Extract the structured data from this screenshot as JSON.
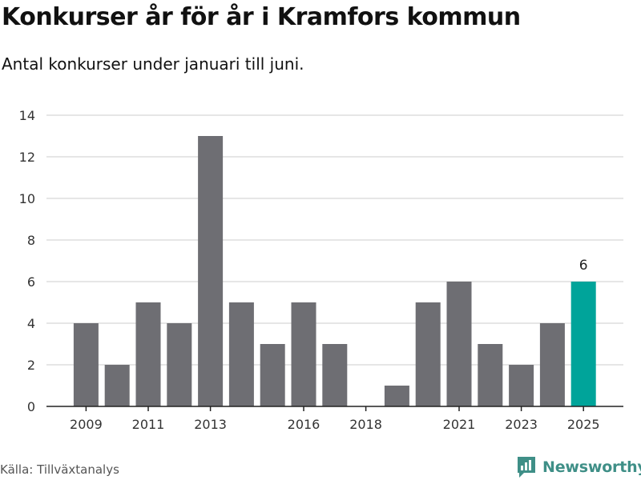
{
  "title": "Konkurser år för år i Kramfors kommun",
  "subtitle": "Antal konkurser under januari till juni.",
  "source": "Källa: Tillväxtanalys",
  "logo_text": "Newsworthy",
  "colors": {
    "bar": "#6e6e73",
    "highlight": "#00a49a",
    "grid": "#dddddd",
    "axis": "#222222",
    "logo": "#3f8f87"
  },
  "chart_data": {
    "type": "bar",
    "title": "Konkurser år för år i Kramfors kommun",
    "subtitle": "Antal konkurser under januari till juni.",
    "categories": [
      2009,
      2010,
      2011,
      2012,
      2013,
      2014,
      2015,
      2016,
      2017,
      2018,
      2019,
      2020,
      2021,
      2022,
      2023,
      2024,
      2025
    ],
    "values": [
      4,
      2,
      5,
      4,
      13,
      5,
      3,
      5,
      3,
      0,
      1,
      5,
      6,
      3,
      2,
      4,
      6
    ],
    "x_tick_labels": [
      2009,
      2011,
      2013,
      2016,
      2018,
      2021,
      2023,
      2025
    ],
    "y_ticks": [
      0,
      2,
      4,
      6,
      8,
      10,
      12,
      14
    ],
    "ylim": [
      0,
      14
    ],
    "highlight_category": 2025,
    "data_labels": [
      {
        "category": 2025,
        "text": "6"
      }
    ],
    "grid": true,
    "legend": "none",
    "xlabel": "",
    "ylabel": ""
  }
}
